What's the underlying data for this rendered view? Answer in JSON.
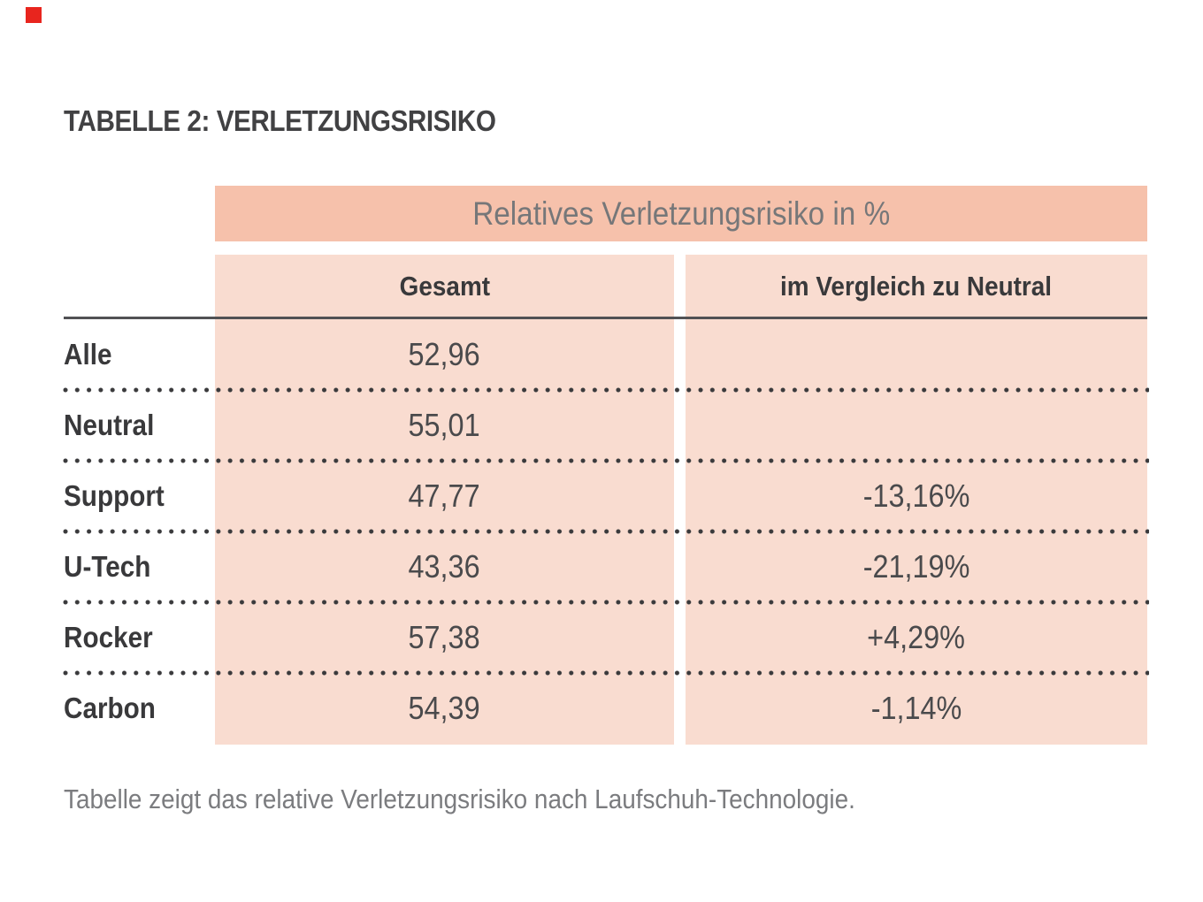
{
  "marker": {
    "name": "red-square-marker",
    "color": "#e8251e"
  },
  "title": "TABELLE 2: VERLETZUNGSRISIKO",
  "table": {
    "band_title": "Relatives Verletzungsrisiko in %",
    "columns": {
      "gesamt": "Gesamt",
      "vergleich": "im Vergleich zu Neutral"
    },
    "rows": [
      {
        "label": "Alle",
        "gesamt": "52,96",
        "vergleich": ""
      },
      {
        "label": "Neutral",
        "gesamt": "55,01",
        "vergleich": ""
      },
      {
        "label": "Support",
        "gesamt": "47,77",
        "vergleich": "-13,16%"
      },
      {
        "label": "U-Tech",
        "gesamt": "43,36",
        "vergleich": "-21,19%"
      },
      {
        "label": "Rocker",
        "gesamt": "57,38",
        "vergleich": "+4,29%"
      },
      {
        "label": "Carbon",
        "gesamt": "54,39",
        "vergleich": "-1,14%"
      }
    ]
  },
  "caption": "Tabelle zeigt das relative Verletzungsrisiko nach Laufschuh-Technologie.",
  "chart_data": {
    "type": "table",
    "title": "TABELLE 2: VERLETZUNGSRISIKO",
    "group_header": "Relatives Verletzungsrisiko in %",
    "columns": [
      "",
      "Gesamt",
      "im Vergleich zu Neutral"
    ],
    "rows": [
      [
        "Alle",
        "52,96",
        ""
      ],
      [
        "Neutral",
        "55,01",
        ""
      ],
      [
        "Support",
        "47,77",
        "-13,16%"
      ],
      [
        "U-Tech",
        "43,36",
        "-21,19%"
      ],
      [
        "Rocker",
        "57,38",
        "+4,29%"
      ],
      [
        "Carbon",
        "54,39",
        "-1,14%"
      ]
    ],
    "note": "Tabelle zeigt das relative Verletzungsrisiko nach Laufschuh-Technologie."
  },
  "colors": {
    "band_background": "#f6c1ab",
    "cell_background": "#f9dcd0",
    "marker_red": "#e8251e",
    "title_text": "#414143",
    "header_text": "#39393b",
    "value_text": "#4a4a4c",
    "band_text": "#767779",
    "caption_text": "#7b7c7f",
    "rule": "#515154",
    "dots": "#3a3a3c"
  }
}
